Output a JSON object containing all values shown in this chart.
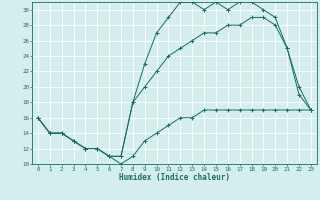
{
  "title": "",
  "xlabel": "Humidex (Indice chaleur)",
  "xlim": [
    -0.5,
    23.5
  ],
  "ylim": [
    10,
    31
  ],
  "xticks": [
    0,
    1,
    2,
    3,
    4,
    5,
    6,
    7,
    8,
    9,
    10,
    11,
    12,
    13,
    14,
    15,
    16,
    17,
    18,
    19,
    20,
    21,
    22,
    23
  ],
  "yticks": [
    10,
    12,
    14,
    16,
    18,
    20,
    22,
    24,
    26,
    28,
    30
  ],
  "bg_color": "#d4eeee",
  "line_color": "#1a6e5e",
  "grid_color": "#ffffff",
  "line1_x": [
    0,
    1,
    2,
    3,
    4,
    5,
    6,
    7,
    8,
    9,
    10,
    11,
    12,
    13,
    14,
    15,
    16,
    17,
    18,
    19,
    20,
    21,
    22,
    23
  ],
  "line1_y": [
    16,
    14,
    14,
    13,
    12,
    12,
    11,
    10,
    11,
    13,
    14,
    15,
    16,
    16,
    17,
    17,
    17,
    17,
    17,
    17,
    17,
    17,
    17,
    17
  ],
  "line2_x": [
    0,
    1,
    2,
    3,
    4,
    5,
    6,
    7,
    8,
    9,
    10,
    11,
    12,
    13,
    14,
    15,
    16,
    17,
    18,
    19,
    20,
    21,
    22,
    23
  ],
  "line2_y": [
    16,
    14,
    14,
    13,
    12,
    12,
    11,
    11,
    18,
    23,
    27,
    29,
    31,
    31,
    30,
    31,
    30,
    31,
    31,
    30,
    29,
    25,
    20,
    17
  ],
  "line3_x": [
    0,
    1,
    2,
    3,
    4,
    5,
    6,
    7,
    8,
    9,
    10,
    11,
    12,
    13,
    14,
    15,
    16,
    17,
    18,
    19,
    20,
    21,
    22,
    23
  ],
  "line3_y": [
    16,
    14,
    14,
    13,
    12,
    12,
    11,
    11,
    18,
    20,
    22,
    24,
    25,
    26,
    27,
    27,
    28,
    28,
    29,
    29,
    28,
    25,
    19,
    17
  ]
}
